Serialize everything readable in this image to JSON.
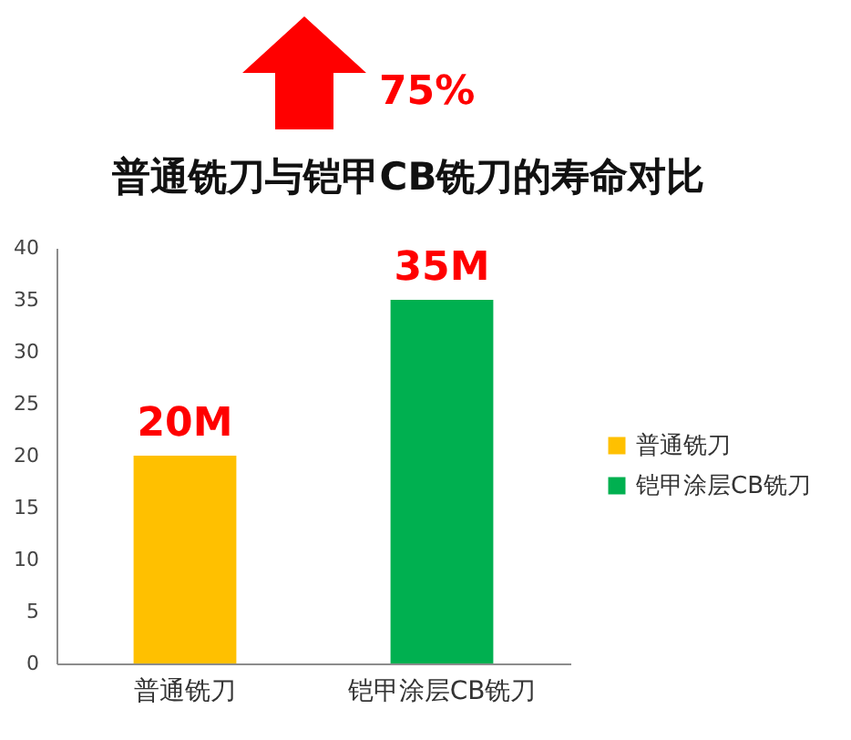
{
  "chart_data": {
    "type": "bar",
    "title": "普通铣刀与铠甲CB铣刀的寿命对比",
    "categories": [
      "普通铣刀",
      "铠甲涂层CB铣刀"
    ],
    "series": [
      {
        "name": "普通铣刀",
        "color": "#ffc000",
        "values": [
          20,
          null
        ],
        "value_labels": [
          "20M",
          null
        ]
      },
      {
        "name": "铠甲涂层CB铣刀",
        "color": "#00b050",
        "values": [
          null,
          35
        ],
        "value_labels": [
          null,
          "35M"
        ]
      }
    ],
    "ylim": [
      0,
      40
    ],
    "yticks": [
      0,
      5,
      10,
      15,
      20,
      25,
      30,
      35,
      40
    ],
    "grid": false,
    "legend": "right",
    "annotations": [
      "75%"
    ]
  }
}
